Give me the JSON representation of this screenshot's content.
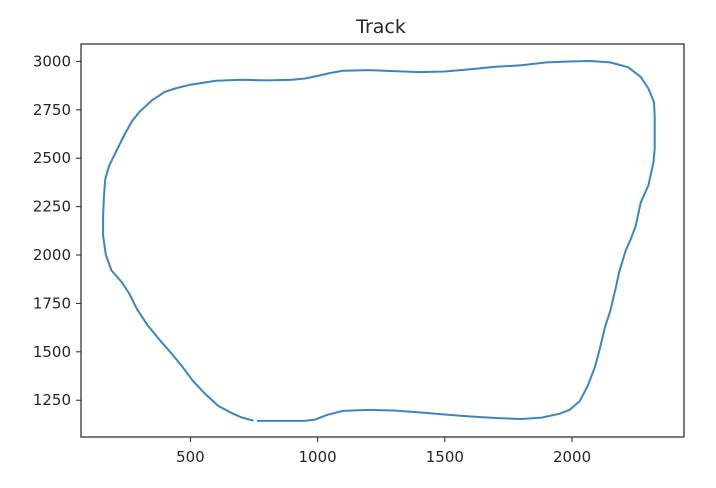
{
  "chart_data": {
    "type": "line",
    "title": "Track",
    "xlabel": "",
    "ylabel": "",
    "xlim": [
      70,
      2440
    ],
    "ylim": [
      1060,
      3090
    ],
    "x_ticks": [
      500,
      1000,
      1500,
      2000
    ],
    "y_ticks": [
      1250,
      1500,
      1750,
      2000,
      2250,
      2500,
      2750,
      3000
    ],
    "grid": false,
    "series": [
      {
        "color": "#3a86c4",
        "points": [
          [
            765,
            1143
          ],
          [
            950,
            1143
          ],
          [
            990,
            1150
          ],
          [
            1040,
            1175
          ],
          [
            1100,
            1195
          ],
          [
            1200,
            1200
          ],
          [
            1300,
            1197
          ],
          [
            1400,
            1187
          ],
          [
            1500,
            1176
          ],
          [
            1600,
            1166
          ],
          [
            1700,
            1158
          ],
          [
            1800,
            1153
          ],
          [
            1880,
            1160
          ],
          [
            1950,
            1180
          ],
          [
            1990,
            1200
          ],
          [
            2030,
            1245
          ],
          [
            2060,
            1320
          ],
          [
            2090,
            1420
          ],
          [
            2110,
            1520
          ],
          [
            2130,
            1630
          ],
          [
            2150,
            1710
          ],
          [
            2170,
            1820
          ],
          [
            2185,
            1910
          ],
          [
            2210,
            2020
          ],
          [
            2230,
            2080
          ],
          [
            2250,
            2150
          ],
          [
            2270,
            2270
          ],
          [
            2300,
            2360
          ],
          [
            2310,
            2420
          ],
          [
            2320,
            2480
          ],
          [
            2325,
            2550
          ],
          [
            2325,
            2640
          ],
          [
            2325,
            2710
          ],
          [
            2322,
            2790
          ],
          [
            2300,
            2860
          ],
          [
            2270,
            2920
          ],
          [
            2220,
            2970
          ],
          [
            2150,
            2995
          ],
          [
            2070,
            3002
          ],
          [
            2000,
            3000
          ],
          [
            1900,
            2995
          ],
          [
            1800,
            2980
          ],
          [
            1700,
            2972
          ],
          [
            1600,
            2960
          ],
          [
            1500,
            2948
          ],
          [
            1400,
            2945
          ],
          [
            1300,
            2950
          ],
          [
            1200,
            2955
          ],
          [
            1100,
            2952
          ],
          [
            1050,
            2940
          ],
          [
            1000,
            2925
          ],
          [
            950,
            2912
          ],
          [
            900,
            2905
          ],
          [
            800,
            2902
          ],
          [
            700,
            2905
          ],
          [
            600,
            2900
          ],
          [
            500,
            2880
          ],
          [
            440,
            2860
          ],
          [
            400,
            2843
          ],
          [
            350,
            2800
          ],
          [
            300,
            2740
          ],
          [
            270,
            2690
          ],
          [
            240,
            2620
          ],
          [
            210,
            2540
          ],
          [
            180,
            2460
          ],
          [
            165,
            2390
          ],
          [
            160,
            2300
          ],
          [
            157,
            2200
          ],
          [
            157,
            2100
          ],
          [
            168,
            2000
          ],
          [
            190,
            1920
          ],
          [
            230,
            1860
          ],
          [
            260,
            1800
          ],
          [
            290,
            1720
          ],
          [
            330,
            1640
          ],
          [
            380,
            1560
          ],
          [
            420,
            1500
          ],
          [
            470,
            1420
          ],
          [
            510,
            1350
          ],
          [
            560,
            1280
          ],
          [
            610,
            1220
          ],
          [
            660,
            1185
          ],
          [
            700,
            1162
          ],
          [
            745,
            1145
          ]
        ]
      }
    ]
  }
}
